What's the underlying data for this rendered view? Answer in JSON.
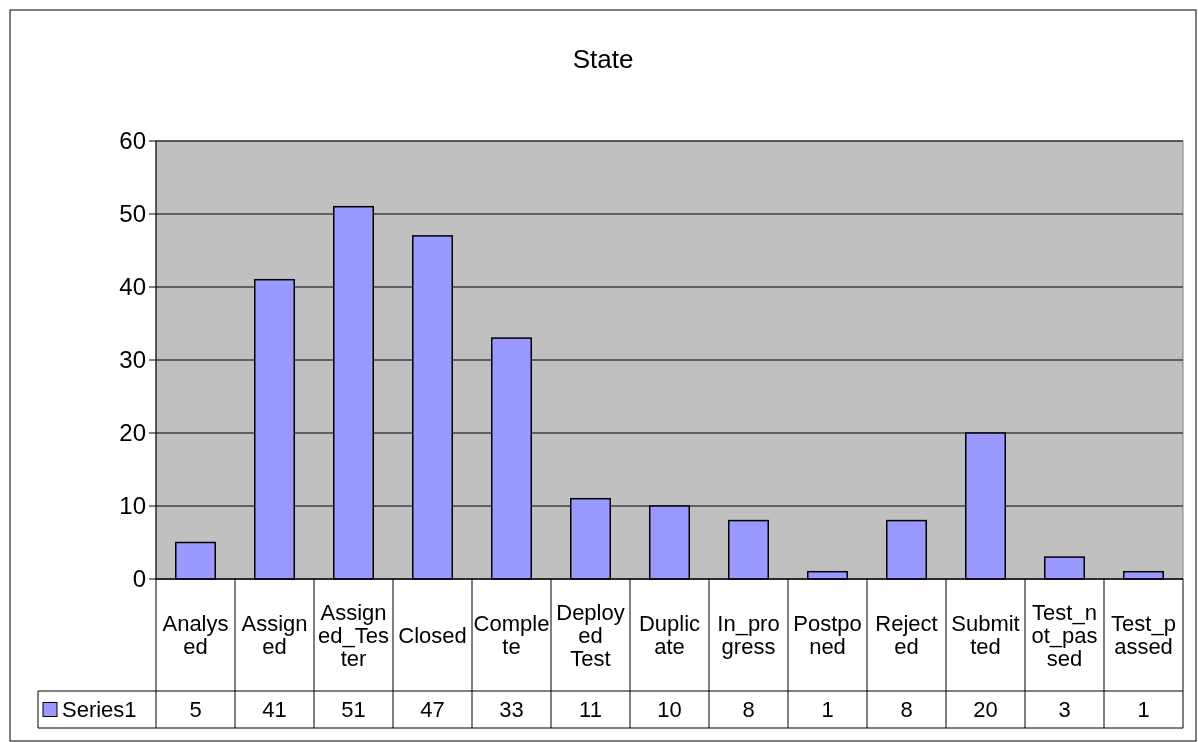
{
  "chart_data": {
    "type": "bar",
    "title": "State",
    "categories": [
      "Analysed",
      "Assigned",
      "Assigned_Tester",
      "Closed",
      "Complete",
      "Deployed Test",
      "Duplicate",
      "In_progress",
      "Postponed",
      "Rejected",
      "Submitted",
      "Test_not_passed",
      "Test_passed"
    ],
    "series": [
      {
        "name": "Series1",
        "color": "#9999ff",
        "values": [
          5,
          41,
          51,
          47,
          33,
          11,
          10,
          8,
          1,
          8,
          20,
          3,
          1
        ]
      }
    ],
    "ylim": [
      0,
      60
    ],
    "yticks": [
      0,
      10,
      20,
      30,
      40,
      50,
      60
    ],
    "grid": "y",
    "legend": "bottom left",
    "data_labels": true
  }
}
